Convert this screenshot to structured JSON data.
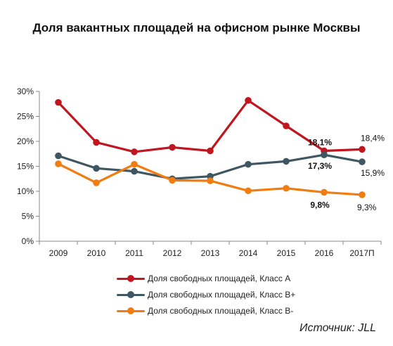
{
  "chart_data": {
    "type": "line",
    "title": "Доля вакантных площадей на офисном рынке Москвы",
    "categories": [
      "2009",
      "2010",
      "2011",
      "2012",
      "2013",
      "2014",
      "2015",
      "2016",
      "2017П"
    ],
    "y_ticks": [
      "0%",
      "5%",
      "10%",
      "15%",
      "20%",
      "25%",
      "30%"
    ],
    "ylim": [
      0,
      30
    ],
    "grid": false,
    "legend_position": "bottom",
    "series": [
      {
        "name": "Доля свободных площадей, Класс А",
        "color": "#c0161f",
        "values": [
          27.8,
          19.8,
          17.9,
          18.8,
          18.1,
          28.2,
          23.1,
          18.1,
          18.4
        ]
      },
      {
        "name": "Доля свободных площадей, Класс В+",
        "color": "#3f5762",
        "values": [
          17.1,
          14.6,
          14.0,
          12.5,
          13.0,
          15.4,
          16.0,
          17.3,
          15.9
        ]
      },
      {
        "name": "Доля свободных площадей, Класс В-",
        "color": "#f07c12",
        "values": [
          15.5,
          11.7,
          15.4,
          12.2,
          12.1,
          10.1,
          10.6,
          9.8,
          9.3
        ]
      }
    ],
    "data_labels": [
      {
        "series": 0,
        "index": 7,
        "text": "18,1%",
        "bold": true
      },
      {
        "series": 0,
        "index": 8,
        "text": "18,4%",
        "bold": false
      },
      {
        "series": 1,
        "index": 7,
        "text": "17,3%",
        "bold": true
      },
      {
        "series": 1,
        "index": 8,
        "text": "15,9%",
        "bold": false
      },
      {
        "series": 2,
        "index": 7,
        "text": "9,8%",
        "bold": true
      },
      {
        "series": 2,
        "index": 8,
        "text": "9,3%",
        "bold": false
      }
    ]
  },
  "source": "Источник: JLL"
}
